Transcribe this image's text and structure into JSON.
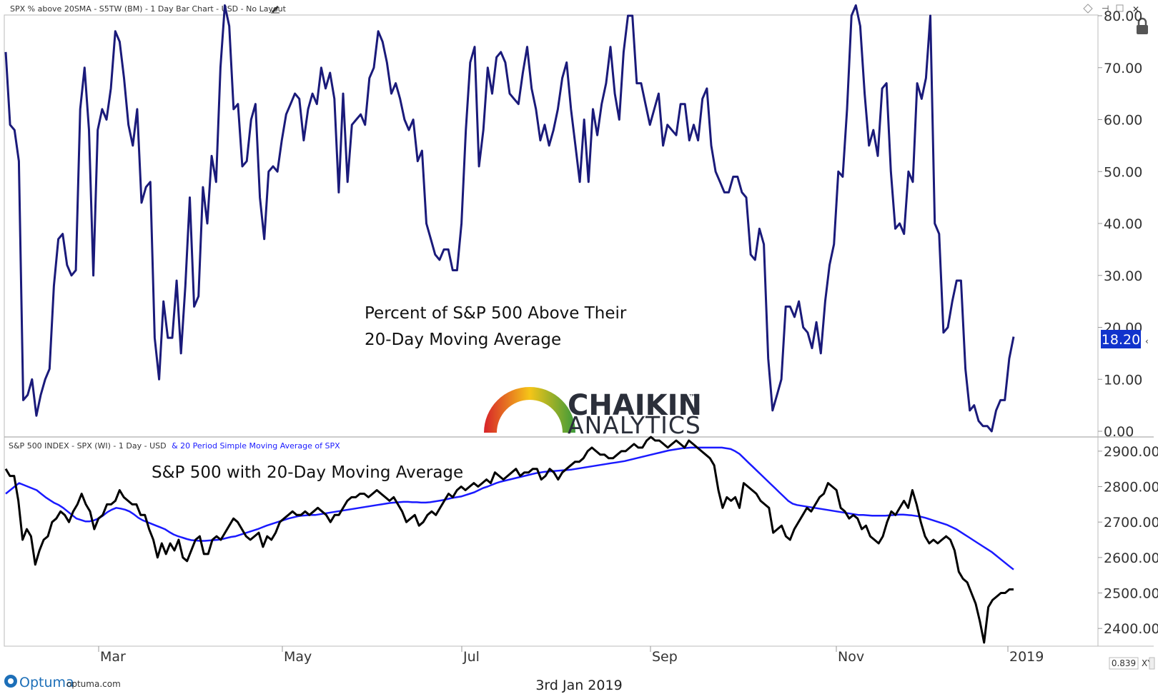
{
  "top_panel": {
    "header": "SPX % above 20SMA - S5TW (BM) - 1 Day Bar Chart - USD - No Layout",
    "annotation_line1": "Percent of S&P 500 Above Their",
    "annotation_line2": "20-Day Moving Average",
    "current_value_label": "18.20"
  },
  "bottom_panel": {
    "header_main": "S&P 500 INDEX - SPX (WI) - 1 Day - USD",
    "header_ma": "& 20 Period Simple Moving Average of SPX",
    "annotation": "S&P 500 with 20-Day Moving Average"
  },
  "logo": {
    "name": "CHAIKIN",
    "trademark": "™",
    "sub": "ANALYTICS"
  },
  "footer": {
    "brand": "Optuma",
    "site": "optuma.com",
    "date": "3rd Jan 2019",
    "zoom": "0.839",
    "xy_label": "XY"
  },
  "colors": {
    "top_line": "#1a1a7a",
    "spx_line": "#000000",
    "ma_line": "#1a1aff",
    "value_badge": "#1133cc"
  },
  "chart_data": [
    {
      "type": "line",
      "title": "Percent of S&P 500 Above Their 20-Day Moving Average",
      "ylim": [
        0,
        80
      ],
      "ytick_labels": [
        "0.00",
        "10.00",
        "20.00",
        "30.00",
        "40.00",
        "50.00",
        "60.00",
        "70.00",
        "80.00"
      ],
      "x_start": "2018-01-31",
      "x_end": "2019-01-03",
      "series": [
        {
          "values": [
            73,
            59,
            58,
            52,
            6,
            7,
            10,
            3,
            7,
            10,
            12,
            28,
            37,
            38,
            32,
            30,
            31,
            62,
            70,
            58,
            30,
            58,
            62,
            60,
            66,
            77,
            75,
            68,
            59,
            55,
            62,
            44,
            47,
            48,
            18,
            10,
            25,
            18,
            18,
            29,
            15,
            28,
            45,
            24,
            26,
            47,
            40,
            53,
            48,
            70,
            82,
            78,
            62,
            63,
            51,
            52,
            60,
            63,
            45,
            37,
            50,
            51,
            50,
            56,
            61,
            63,
            65,
            64,
            56,
            62,
            65,
            63,
            70,
            66,
            69,
            64,
            46,
            65,
            48,
            59,
            60,
            61,
            59,
            68,
            70,
            77,
            75,
            71,
            65,
            67,
            64,
            60,
            58,
            60,
            52,
            54,
            40,
            37,
            34,
            33,
            35,
            35,
            31,
            31,
            40,
            58,
            71,
            74,
            51,
            58,
            70,
            65,
            72,
            73,
            71,
            65,
            64,
            63,
            69,
            74,
            66,
            62,
            56,
            59,
            55,
            58,
            62,
            68,
            71,
            62,
            55,
            48,
            60,
            48,
            62,
            57,
            63,
            67,
            74,
            65,
            60,
            73,
            80,
            80,
            67,
            67,
            63,
            59,
            62,
            65,
            55,
            59,
            58,
            57,
            63,
            63,
            56,
            59,
            56,
            64,
            66,
            55,
            50,
            48,
            46,
            46,
            49,
            49,
            46,
            45,
            34,
            33,
            39,
            36,
            14,
            4,
            7,
            10,
            24,
            24,
            22,
            25,
            20,
            19,
            16,
            21,
            15,
            25,
            32,
            36,
            50,
            49,
            62,
            80,
            82,
            78,
            65,
            55,
            58,
            53,
            66,
            67,
            50,
            39,
            40,
            38,
            50,
            48,
            67,
            64,
            68,
            80,
            40,
            38,
            19,
            20,
            25,
            29,
            29,
            12,
            4,
            5,
            2,
            1,
            1,
            0,
            4,
            6,
            6,
            14,
            18.2
          ]
        }
      ]
    },
    {
      "type": "line",
      "title": "S&P 500 with 20-Day Moving Average",
      "ylim": [
        2350,
        2940
      ],
      "ytick_labels": [
        "2400.00",
        "2500.00",
        "2600.00",
        "2700.00",
        "2800.00",
        "2900.00"
      ],
      "x_tick_labels": [
        "Mar",
        "May",
        "Jul",
        "Sep",
        "Nov",
        "2019"
      ],
      "series": [
        {
          "name": "S&P 500 INDEX - SPX (WI) - 1 Day - USD",
          "values": [
            2850,
            2830,
            2830,
            2760,
            2650,
            2680,
            2660,
            2580,
            2620,
            2650,
            2660,
            2700,
            2710,
            2730,
            2720,
            2700,
            2730,
            2750,
            2780,
            2750,
            2730,
            2680,
            2710,
            2720,
            2750,
            2750,
            2760,
            2790,
            2770,
            2760,
            2750,
            2750,
            2720,
            2720,
            2680,
            2650,
            2600,
            2640,
            2610,
            2640,
            2620,
            2650,
            2600,
            2590,
            2620,
            2650,
            2660,
            2610,
            2610,
            2650,
            2660,
            2650,
            2670,
            2690,
            2710,
            2700,
            2680,
            2660,
            2650,
            2660,
            2670,
            2630,
            2660,
            2650,
            2670,
            2700,
            2710,
            2720,
            2730,
            2720,
            2720,
            2730,
            2720,
            2730,
            2740,
            2730,
            2720,
            2700,
            2720,
            2720,
            2740,
            2760,
            2770,
            2770,
            2780,
            2780,
            2770,
            2780,
            2790,
            2780,
            2770,
            2760,
            2770,
            2750,
            2730,
            2700,
            2710,
            2720,
            2690,
            2700,
            2720,
            2730,
            2720,
            2740,
            2760,
            2780,
            2770,
            2790,
            2800,
            2790,
            2800,
            2810,
            2800,
            2810,
            2820,
            2810,
            2840,
            2830,
            2820,
            2830,
            2840,
            2850,
            2830,
            2840,
            2840,
            2850,
            2850,
            2820,
            2830,
            2850,
            2840,
            2820,
            2840,
            2850,
            2860,
            2870,
            2870,
            2880,
            2900,
            2910,
            2900,
            2890,
            2890,
            2880,
            2880,
            2890,
            2900,
            2900,
            2910,
            2920,
            2910,
            2910,
            2930,
            2940,
            2930,
            2930,
            2920,
            2910,
            2920,
            2930,
            2920,
            2910,
            2930,
            2920,
            2910,
            2900,
            2890,
            2880,
            2860,
            2790,
            2740,
            2770,
            2760,
            2770,
            2740,
            2810,
            2800,
            2790,
            2780,
            2760,
            2750,
            2740,
            2670,
            2680,
            2690,
            2660,
            2650,
            2680,
            2700,
            2720,
            2740,
            2730,
            2750,
            2770,
            2780,
            2810,
            2800,
            2790,
            2740,
            2730,
            2710,
            2720,
            2710,
            2680,
            2690,
            2660,
            2650,
            2640,
            2660,
            2700,
            2730,
            2720,
            2740,
            2760,
            2740,
            2790,
            2750,
            2700,
            2660,
            2640,
            2650,
            2640,
            2650,
            2660,
            2650,
            2620,
            2560,
            2540,
            2530,
            2500,
            2470,
            2420,
            2360,
            2460,
            2480,
            2490,
            2500,
            2500,
            2510,
            2510
          ]
        },
        {
          "name": "20 Period Simple Moving Average of SPX",
          "values": [
            2780,
            2790,
            2800,
            2810,
            2805,
            2800,
            2795,
            2790,
            2780,
            2770,
            2762,
            2754,
            2748,
            2740,
            2730,
            2720,
            2710,
            2706,
            2702,
            2702,
            2705,
            2710,
            2718,
            2728,
            2735,
            2740,
            2738,
            2735,
            2730,
            2722,
            2712,
            2705,
            2700,
            2695,
            2690,
            2685,
            2680,
            2672,
            2665,
            2660,
            2656,
            2652,
            2649,
            2648,
            2647,
            2647,
            2648,
            2649,
            2650,
            2652,
            2655,
            2658,
            2660,
            2664,
            2668,
            2672,
            2676,
            2680,
            2685,
            2690,
            2694,
            2698,
            2702,
            2706,
            2710,
            2713,
            2716,
            2718,
            2719,
            2720,
            2720,
            2722,
            2724,
            2726,
            2728,
            2730,
            2732,
            2734,
            2736,
            2738,
            2740,
            2742,
            2744,
            2746,
            2748,
            2750,
            2752,
            2754,
            2755,
            2756,
            2757,
            2757,
            2756,
            2756,
            2755,
            2755,
            2756,
            2758,
            2760,
            2762,
            2765,
            2768,
            2770,
            2772,
            2776,
            2780,
            2784,
            2790,
            2796,
            2800,
            2805,
            2810,
            2814,
            2817,
            2820,
            2823,
            2826,
            2829,
            2832,
            2835,
            2838,
            2840,
            2842,
            2843,
            2844,
            2845,
            2846,
            2847,
            2848,
            2850,
            2852,
            2854,
            2856,
            2858,
            2860,
            2862,
            2864,
            2866,
            2868,
            2870,
            2872,
            2875,
            2878,
            2881,
            2884,
            2887,
            2890,
            2893,
            2896,
            2899,
            2902,
            2904,
            2906,
            2908,
            2909,
            2910,
            2910,
            2910,
            2910,
            2910,
            2910,
            2910,
            2910,
            2908,
            2906,
            2900,
            2892,
            2880,
            2868,
            2856,
            2844,
            2832,
            2820,
            2808,
            2796,
            2784,
            2772,
            2760,
            2752,
            2748,
            2746,
            2744,
            2742,
            2740,
            2738,
            2736,
            2734,
            2732,
            2730,
            2728,
            2726,
            2724,
            2722,
            2720,
            2720,
            2719,
            2718,
            2718,
            2718,
            2718,
            2719,
            2720,
            2721,
            2721,
            2720,
            2719,
            2717,
            2715,
            2712,
            2708,
            2704,
            2700,
            2696,
            2692,
            2686,
            2680,
            2672,
            2664,
            2656,
            2648,
            2640,
            2632,
            2624,
            2616,
            2606,
            2596,
            2586,
            2576,
            2566
          ]
        }
      ]
    }
  ]
}
